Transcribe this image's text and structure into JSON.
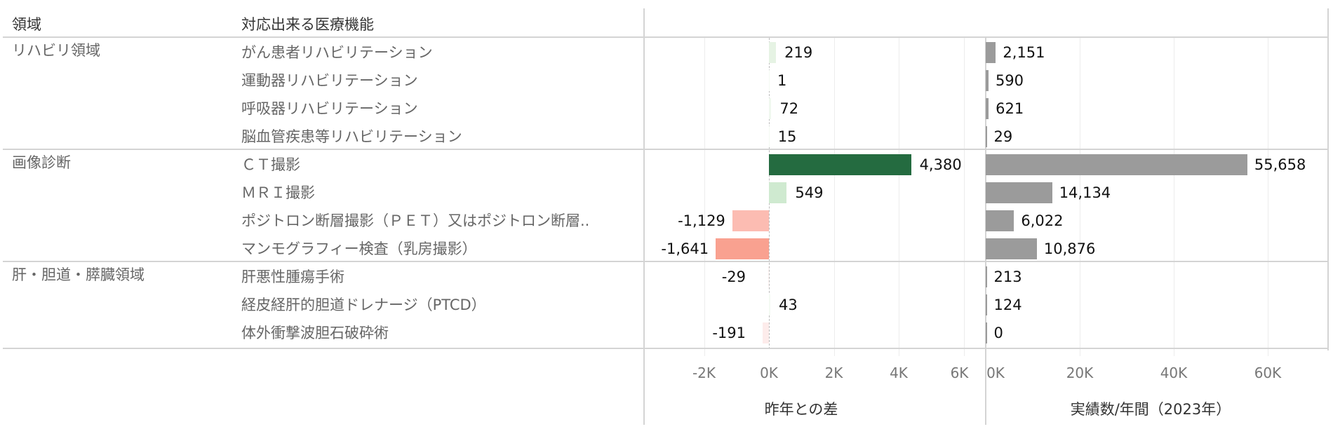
{
  "headers": {
    "area": "領域",
    "function": "対応出来る医療機能"
  },
  "groups": [
    {
      "label": "リハビリ領域",
      "rows": [
        0,
        1,
        2,
        3
      ]
    },
    {
      "label": "画像診断",
      "rows": [
        4,
        5,
        6,
        7
      ]
    },
    {
      "label": "肝・胆道・膵臓領域",
      "rows": [
        8,
        9,
        10
      ]
    }
  ],
  "rows": [
    {
      "function": "がん患者リハビリテーション",
      "diff": 219,
      "diff_label": "219",
      "actual": 2151,
      "actual_label": "2,151",
      "diff_color": "#e6f3e4"
    },
    {
      "function": "運動器リハビリテーション",
      "diff": 1,
      "diff_label": "1",
      "actual": 590,
      "actual_label": "590",
      "diff_color": "#f4faf3"
    },
    {
      "function": "呼吸器リハビリテーション",
      "diff": 72,
      "diff_label": "72",
      "actual": 621,
      "actual_label": "621",
      "diff_color": "#f0f8ef"
    },
    {
      "function": "脳血管疾患等リハビリテーション",
      "diff": 15,
      "diff_label": "15",
      "actual": 29,
      "actual_label": "29",
      "diff_color": "#f4faf3"
    },
    {
      "function": "ＣＴ撮影",
      "diff": 4380,
      "diff_label": "4,380",
      "actual": 55658,
      "actual_label": "55,658",
      "diff_color": "#246b40"
    },
    {
      "function": "ＭＲＩ撮影",
      "diff": 549,
      "diff_label": "549",
      "actual": 14134,
      "actual_label": "14,134",
      "diff_color": "#cfead0"
    },
    {
      "function": "ポジトロン断層撮影（ＰＥＴ）又はポジトロン断層..",
      "diff": -1129,
      "diff_label": "-1,129",
      "actual": 6022,
      "actual_label": "6,022",
      "diff_color": "#fcbcb2"
    },
    {
      "function": "マンモグラフィー検査（乳房撮影）",
      "diff": -1641,
      "diff_label": "-1,641",
      "actual": 10876,
      "actual_label": "10,876",
      "diff_color": "#f9a190"
    },
    {
      "function": "肝悪性腫瘍手術",
      "diff": -29,
      "diff_label": "-29",
      "actual": 213,
      "actual_label": "213",
      "diff_color": "#fff5f4"
    },
    {
      "function": "経皮経肝的胆道ドレナージ（PTCD）",
      "diff": 43,
      "diff_label": "43",
      "actual": 124,
      "actual_label": "124",
      "diff_color": "#f4faf3"
    },
    {
      "function": "体外衝撃波胆石破砕術",
      "diff": -191,
      "diff_label": "-191",
      "actual": 0,
      "actual_label": "0",
      "diff_color": "#fdeceb"
    }
  ],
  "axes": {
    "diff": {
      "title": "昨年との差",
      "ticks": [
        "-2K",
        "0K",
        "2K",
        "4K",
        "6K"
      ],
      "tick_values": [
        -2000,
        0,
        2000,
        4000,
        6000
      ]
    },
    "actual": {
      "title": "実績数/年間（2023年）",
      "ticks": [
        "0K",
        "20K",
        "40K",
        "60K"
      ],
      "tick_values": [
        0,
        20000,
        40000,
        60000
      ]
    }
  },
  "colors": {
    "actual_bar": "#9b9b9b",
    "positive_strong": "#246b40",
    "negative_strong": "#f9a190"
  },
  "chart_data": [
    {
      "type": "bar",
      "title": "昨年との差",
      "orientation": "horizontal",
      "categories": [
        "がん患者リハビリテーション",
        "運動器リハビリテーション",
        "呼吸器リハビリテーション",
        "脳血管疾患等リハビリテーション",
        "ＣＴ撮影",
        "ＭＲＩ撮影",
        "ポジトロン断層撮影（ＰＥＴ）又はポジトロン断層..",
        "マンモグラフィー検査（乳房撮影）",
        "肝悪性腫瘍手術",
        "経皮経肝的胆道ドレナージ（PTCD）",
        "体外衝撃波胆石破砕術"
      ],
      "groups": [
        "リハビリ領域",
        "リハビリ領域",
        "リハビリ領域",
        "リハビリ領域",
        "画像診断",
        "画像診断",
        "画像診断",
        "画像診断",
        "肝・胆道・膵臓領域",
        "肝・胆道・膵臓領域",
        "肝・胆道・膵臓領域"
      ],
      "values": [
        219,
        1,
        72,
        15,
        4380,
        549,
        -1129,
        -1641,
        -29,
        43,
        -191
      ],
      "xlabel": "昨年との差",
      "xlim": [
        -3000,
        6700
      ],
      "xticks": [
        "-2K",
        "0K",
        "2K",
        "4K",
        "6K"
      ],
      "grid": true,
      "color_scale": "diverging red-green"
    },
    {
      "type": "bar",
      "title": "実績数/年間（2023年）",
      "orientation": "horizontal",
      "categories": [
        "がん患者リハビリテーション",
        "運動器リハビリテーション",
        "呼吸器リハビリテーション",
        "脳血管疾患等リハビリテーション",
        "ＣＴ撮影",
        "ＭＲＩ撮影",
        "ポジトロン断層撮影（ＰＥＴ）又はポジトロン断層..",
        "マンモグラフィー検査（乳房撮影）",
        "肝悪性腫瘍手術",
        "経皮経肝的胆道ドレナージ（PTCD）",
        "体外衝撃波胆石破砕術"
      ],
      "values": [
        2151,
        590,
        621,
        29,
        55658,
        14134,
        6022,
        10876,
        213,
        124,
        0
      ],
      "xlabel": "実績数/年間（2023年）",
      "xlim": [
        0,
        73000
      ],
      "xticks": [
        "0K",
        "20K",
        "40K",
        "60K"
      ],
      "grid": true,
      "color": "#9b9b9b"
    }
  ]
}
